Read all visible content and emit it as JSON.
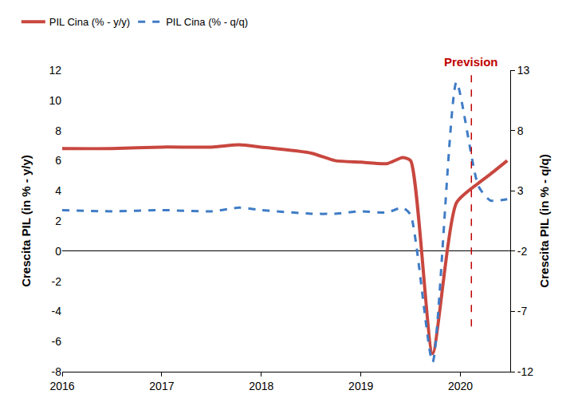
{
  "chart_data": {
    "type": "line",
    "x": [
      2016,
      2016.5,
      2017,
      2017.5,
      2017.78,
      2018,
      2018.5,
      2018.74,
      2019,
      2019.26,
      2019.42,
      2019.5,
      2019.72,
      2019.96,
      2020.18,
      2020.3,
      2020.47
    ],
    "series": [
      {
        "name": "PIL Cina (% - y/y)",
        "color": "#c8473f",
        "line_style": "solid",
        "axis": "y",
        "values": [
          6.8,
          6.8,
          6.9,
          6.9,
          7.05,
          6.9,
          6.5,
          6.0,
          5.9,
          5.8,
          6.2,
          6.0,
          -6.8,
          3.2,
          4.5,
          5.1,
          6.0
        ]
      },
      {
        "name": "PIL Cina (% - q/q)",
        "color": "#3f7cc6",
        "line_style": "dash",
        "axis": "y2",
        "values": [
          1.4,
          1.3,
          1.4,
          1.3,
          1.6,
          1.4,
          1.1,
          1.1,
          1.3,
          1.2,
          1.6,
          1.0,
          -11.2,
          12.0,
          3.4,
          2.2,
          2.3
        ]
      }
    ],
    "y_label": "Crescita PIL (in % - y/y)",
    "y2_label": "Crescita PIL (in % - q/q)",
    "xlim": [
      2016,
      2020.5
    ],
    "xticks": [
      2016,
      2017,
      2018,
      2019,
      2020
    ],
    "ylim": [
      -8,
      12
    ],
    "yticks": [
      -8,
      -6,
      -4,
      -2,
      0,
      2,
      4,
      6,
      8,
      10,
      12
    ],
    "y2lim": [
      -12,
      13
    ],
    "y2ticks": [
      -12,
      -7,
      -2,
      3,
      8,
      13
    ],
    "annotations": [
      {
        "text": "Prevision",
        "x": 2020.11,
        "y_range": [
          -5,
          12
        ],
        "color": "#c00000"
      }
    ],
    "grid": false,
    "legend": "top left"
  }
}
